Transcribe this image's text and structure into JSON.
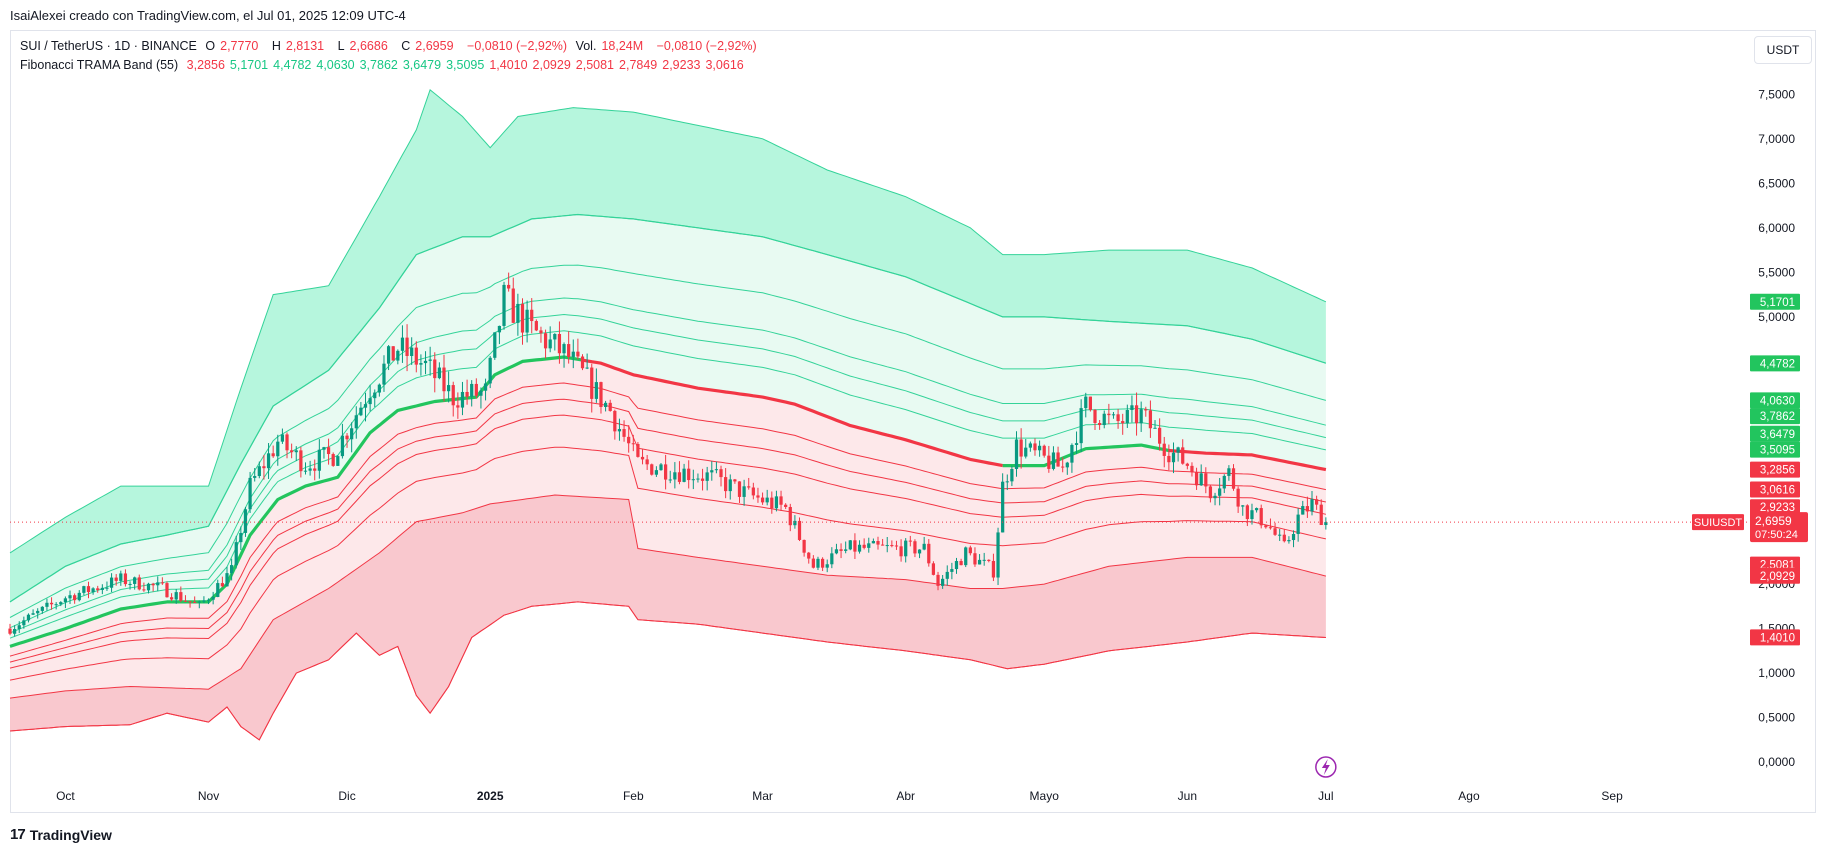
{
  "header": {
    "caption": "IsaiAlexei creado con TradingView.com, el Jul 01, 2025 12:09 UTC-4",
    "currency_button": "USDT"
  },
  "legend": {
    "symbol": "SUI / TetherUS · 1D · BINANCE",
    "open_label": "O",
    "open": "2,7770",
    "high_label": "H",
    "high": "2,8131",
    "low_label": "L",
    "low": "2,6686",
    "close_label": "C",
    "close": "2,6959",
    "change": "−0,0810 (−2,92%)",
    "volume_label": "Vol.",
    "volume": "18,24M",
    "volume_change": "−0,0810 (−2,92%)",
    "indicator_name": "Fibonacci TRAMA Band (55)",
    "indicator_values": [
      {
        "v": "3,2856",
        "c": "red"
      },
      {
        "v": "5,1701",
        "c": "green"
      },
      {
        "v": "4,4782",
        "c": "green"
      },
      {
        "v": "4,0630",
        "c": "green"
      },
      {
        "v": "3,7862",
        "c": "green"
      },
      {
        "v": "3,6479",
        "c": "green"
      },
      {
        "v": "3,5095",
        "c": "green"
      },
      {
        "v": "1,4010",
        "c": "red"
      },
      {
        "v": "2,0929",
        "c": "red"
      },
      {
        "v": "2,5081",
        "c": "red"
      },
      {
        "v": "2,7849",
        "c": "red"
      },
      {
        "v": "2,9233",
        "c": "red"
      },
      {
        "v": "3,0616",
        "c": "red"
      }
    ]
  },
  "footer": {
    "brand": "TradingView"
  },
  "colors": {
    "up": "#089981",
    "down": "#f23645",
    "green_line": "#22c55e",
    "red_line": "#f23645",
    "green_fill": "#b2f5db",
    "red_fill": "#f9c5cb",
    "grid_text": "#131722"
  },
  "chart_data": {
    "type": "candlestick",
    "symbol": "SUIUSDT",
    "y_axis": {
      "ticks": [
        {
          "v": 0.0,
          "label": "0,0000"
        },
        {
          "v": 0.5,
          "label": "0,5000"
        },
        {
          "v": 1.0,
          "label": "1,0000"
        },
        {
          "v": 1.5,
          "label": "1,5000"
        },
        {
          "v": 2.0,
          "label": "2,0000"
        },
        {
          "v": 5.0,
          "label": "5,0000"
        },
        {
          "v": 5.5,
          "label": "5,5000"
        },
        {
          "v": 6.0,
          "label": "6,0000"
        },
        {
          "v": 6.5,
          "label": "6,5000"
        },
        {
          "v": 7.0,
          "label": "7,0000"
        },
        {
          "v": 7.5,
          "label": "7,5000"
        }
      ],
      "ylim": [
        -0.2,
        7.75
      ]
    },
    "x_axis": {
      "start": "2024-09-19",
      "end": "2025-09-30",
      "ticks": [
        {
          "date": "2024-10-01",
          "label": "Oct",
          "bold": false
        },
        {
          "date": "2024-11-01",
          "label": "Nov",
          "bold": false
        },
        {
          "date": "2024-12-01",
          "label": "Dic",
          "bold": false
        },
        {
          "date": "2025-01-01",
          "label": "2025",
          "bold": true
        },
        {
          "date": "2025-02-01",
          "label": "Feb",
          "bold": false
        },
        {
          "date": "2025-03-01",
          "label": "Mar",
          "bold": false
        },
        {
          "date": "2025-04-01",
          "label": "Abr",
          "bold": false
        },
        {
          "date": "2025-05-01",
          "label": "Mayo",
          "bold": false
        },
        {
          "date": "2025-06-01",
          "label": "Jun",
          "bold": false
        },
        {
          "date": "2025-07-01",
          "label": "Jul",
          "bold": false
        },
        {
          "date": "2025-08-01",
          "label": "Ago",
          "bold": false
        },
        {
          "date": "2025-09-01",
          "label": "Sep",
          "bold": false
        }
      ]
    },
    "price_anchors": [
      [
        "2024-09-19",
        1.5
      ],
      [
        "2024-10-01",
        1.85
      ],
      [
        "2024-10-13",
        2.05
      ],
      [
        "2024-10-22",
        1.95
      ],
      [
        "2024-10-30",
        1.75
      ],
      [
        "2024-11-06",
        2.15
      ],
      [
        "2024-11-10",
        3.1
      ],
      [
        "2024-11-16",
        3.6
      ],
      [
        "2024-11-22",
        3.35
      ],
      [
        "2024-11-28",
        3.45
      ],
      [
        "2024-12-06",
        4.2
      ],
      [
        "2024-12-12",
        4.65
      ],
      [
        "2024-12-18",
        4.45
      ],
      [
        "2024-12-24",
        4.1
      ],
      [
        "2024-12-31",
        4.15
      ],
      [
        "2025-01-04",
        5.2
      ],
      [
        "2025-01-10",
        4.85
      ],
      [
        "2025-01-18",
        4.55
      ],
      [
        "2025-01-27",
        3.95
      ],
      [
        "2025-02-02",
        3.35
      ],
      [
        "2025-02-08",
        3.3
      ],
      [
        "2025-02-18",
        3.2
      ],
      [
        "2025-02-26",
        3.0
      ],
      [
        "2025-03-06",
        2.85
      ],
      [
        "2025-03-12",
        2.2
      ],
      [
        "2025-03-20",
        2.4
      ],
      [
        "2025-03-28",
        2.4
      ],
      [
        "2025-04-05",
        2.4
      ],
      [
        "2025-04-08",
        2.0
      ],
      [
        "2025-04-14",
        2.35
      ],
      [
        "2025-04-20",
        2.15
      ],
      [
        "2025-04-22",
        3.1
      ],
      [
        "2025-04-25",
        3.55
      ],
      [
        "2025-05-05",
        3.3
      ],
      [
        "2025-05-10",
        4.0
      ],
      [
        "2025-05-16",
        3.8
      ],
      [
        "2025-05-22",
        3.9
      ],
      [
        "2025-05-28",
        3.5
      ],
      [
        "2025-06-01",
        3.35
      ],
      [
        "2025-06-06",
        3.05
      ],
      [
        "2025-06-10",
        3.25
      ],
      [
        "2025-06-13",
        2.85
      ],
      [
        "2025-06-18",
        2.7
      ],
      [
        "2025-06-22",
        2.4
      ],
      [
        "2025-06-25",
        2.75
      ],
      [
        "2025-06-28",
        2.9
      ],
      [
        "2025-07-01",
        2.7
      ]
    ],
    "fill_bands": [
      {
        "name": "upper",
        "color": "#b2f5db",
        "top": [
          [
            "2024-09-19",
            2.35
          ],
          [
            "2024-10-01",
            2.75
          ],
          [
            "2024-10-13",
            3.1
          ],
          [
            "2024-10-23",
            3.1
          ],
          [
            "2024-11-01",
            3.1
          ],
          [
            "2024-11-08",
            4.2
          ],
          [
            "2024-11-15",
            5.25
          ],
          [
            "2024-11-27",
            5.35
          ],
          [
            "2024-12-08",
            6.35
          ],
          [
            "2024-12-16",
            7.1
          ],
          [
            "2024-12-19",
            7.55
          ],
          [
            "2024-12-26",
            7.25
          ],
          [
            "2025-01-01",
            6.9
          ],
          [
            "2025-01-07",
            7.25
          ],
          [
            "2025-01-13",
            7.3
          ],
          [
            "2025-01-19",
            7.35
          ],
          [
            "2025-02-01",
            7.3
          ],
          [
            "2025-02-15",
            7.15
          ],
          [
            "2025-03-01",
            7.0
          ],
          [
            "2025-03-15",
            6.65
          ],
          [
            "2025-04-01",
            6.35
          ],
          [
            "2025-04-15",
            6.0
          ],
          [
            "2025-04-22",
            5.7
          ],
          [
            "2025-05-01",
            5.7
          ],
          [
            "2025-05-15",
            5.75
          ],
          [
            "2025-06-01",
            5.75
          ],
          [
            "2025-06-15",
            5.55
          ],
          [
            "2025-07-01",
            5.17
          ]
        ],
        "bottom": [
          [
            "2024-09-19",
            1.8
          ],
          [
            "2024-10-01",
            2.2
          ],
          [
            "2024-10-13",
            2.45
          ],
          [
            "2024-10-23",
            2.55
          ],
          [
            "2024-11-01",
            2.65
          ],
          [
            "2024-11-08",
            3.35
          ],
          [
            "2024-11-15",
            4.0
          ],
          [
            "2024-11-27",
            4.4
          ],
          [
            "2024-12-08",
            5.1
          ],
          [
            "2024-12-16",
            5.7
          ],
          [
            "2024-12-26",
            5.9
          ],
          [
            "2025-01-01",
            5.9
          ],
          [
            "2025-01-10",
            6.1
          ],
          [
            "2025-01-20",
            6.15
          ],
          [
            "2025-02-01",
            6.1
          ],
          [
            "2025-02-15",
            6.0
          ],
          [
            "2025-03-01",
            5.9
          ],
          [
            "2025-03-15",
            5.7
          ],
          [
            "2025-04-01",
            5.45
          ],
          [
            "2025-04-15",
            5.15
          ],
          [
            "2025-04-22",
            5.0
          ],
          [
            "2025-05-01",
            5.0
          ],
          [
            "2025-05-15",
            4.95
          ],
          [
            "2025-06-01",
            4.9
          ],
          [
            "2025-06-15",
            4.75
          ],
          [
            "2025-07-01",
            4.48
          ]
        ]
      },
      {
        "name": "lower",
        "color": "#f9c5cb",
        "top": [
          [
            "2024-09-19",
            0.72
          ],
          [
            "2024-10-01",
            0.8
          ],
          [
            "2024-10-15",
            0.85
          ],
          [
            "2024-11-01",
            0.82
          ],
          [
            "2024-11-08",
            1.05
          ],
          [
            "2024-11-15",
            1.6
          ],
          [
            "2024-11-27",
            1.95
          ],
          [
            "2024-12-08",
            2.35
          ],
          [
            "2024-12-16",
            2.7
          ],
          [
            "2024-12-26",
            2.8
          ],
          [
            "2025-01-01",
            2.9
          ],
          [
            "2025-01-15",
            3.0
          ],
          [
            "2025-01-31",
            2.95
          ],
          [
            "2025-02-02",
            2.4
          ],
          [
            "2025-02-15",
            2.3
          ],
          [
            "2025-03-01",
            2.2
          ],
          [
            "2025-03-15",
            2.1
          ],
          [
            "2025-04-01",
            2.05
          ],
          [
            "2025-04-15",
            1.95
          ],
          [
            "2025-04-22",
            1.95
          ],
          [
            "2025-05-01",
            2.0
          ],
          [
            "2025-05-15",
            2.2
          ],
          [
            "2025-06-01",
            2.3
          ],
          [
            "2025-06-15",
            2.3
          ],
          [
            "2025-07-01",
            2.09
          ]
        ],
        "bottom": [
          [
            "2024-09-19",
            0.35
          ],
          [
            "2024-10-01",
            0.4
          ],
          [
            "2024-10-15",
            0.42
          ],
          [
            "2024-10-23",
            0.55
          ],
          [
            "2024-11-01",
            0.45
          ],
          [
            "2024-11-05",
            0.62
          ],
          [
            "2024-11-08",
            0.4
          ],
          [
            "2024-11-12",
            0.25
          ],
          [
            "2024-11-15",
            0.55
          ],
          [
            "2024-11-20",
            1.0
          ],
          [
            "2024-11-27",
            1.15
          ],
          [
            "2024-12-03",
            1.45
          ],
          [
            "2024-12-08",
            1.2
          ],
          [
            "2024-12-12",
            1.3
          ],
          [
            "2024-12-16",
            0.75
          ],
          [
            "2024-12-19",
            0.55
          ],
          [
            "2024-12-23",
            0.85
          ],
          [
            "2024-12-28",
            1.4
          ],
          [
            "2025-01-04",
            1.65
          ],
          [
            "2025-01-10",
            1.75
          ],
          [
            "2025-01-20",
            1.8
          ],
          [
            "2025-01-31",
            1.75
          ],
          [
            "2025-02-02",
            1.6
          ],
          [
            "2025-02-15",
            1.55
          ],
          [
            "2025-03-01",
            1.45
          ],
          [
            "2025-03-15",
            1.35
          ],
          [
            "2025-04-01",
            1.25
          ],
          [
            "2025-04-15",
            1.15
          ],
          [
            "2025-04-23",
            1.05
          ],
          [
            "2025-05-01",
            1.1
          ],
          [
            "2025-05-15",
            1.25
          ],
          [
            "2025-06-01",
            1.35
          ],
          [
            "2025-06-15",
            1.45
          ],
          [
            "2025-07-01",
            1.4
          ]
        ]
      }
    ],
    "band_lines": [
      {
        "name": "5,1701",
        "color": "#34d399",
        "width": 1.2,
        "fib": 1.0,
        "end": 5.1701
      },
      {
        "name": "4,4782",
        "color": "#34d399",
        "width": 1.0,
        "fib": 0.632,
        "end": 4.4782
      },
      {
        "name": "4,0630",
        "color": "#34d399",
        "width": 1.0,
        "fib": 0.411,
        "end": 4.063
      },
      {
        "name": "3,7862",
        "color": "#34d399",
        "width": 1.0,
        "fib": 0.264,
        "end": 3.7862
      },
      {
        "name": "3,6479",
        "color": "#34d399",
        "width": 1.0,
        "fib": 0.19,
        "end": 3.6479
      },
      {
        "name": "3,5095",
        "color": "#34d399",
        "width": 1.0,
        "fib": 0.117,
        "end": 3.5095
      },
      {
        "name": "3,0616",
        "color": "#f23645",
        "width": 1.0,
        "fib": -0.119,
        "end": 3.0616
      },
      {
        "name": "2,9233",
        "color": "#f23645",
        "width": 1.0,
        "fib": -0.193,
        "end": 2.9233
      },
      {
        "name": "2,7849",
        "color": "#f23645",
        "width": 1.0,
        "fib": -0.266,
        "end": 2.7849
      },
      {
        "name": "2,5081",
        "color": "#f23645",
        "width": 1.0,
        "fib": -0.413,
        "end": 2.5081
      },
      {
        "name": "2,0929",
        "color": "#f23645",
        "width": 1.0,
        "fib": -0.634,
        "end": 2.0929
      },
      {
        "name": "1,4010",
        "color": "#f23645",
        "width": 1.0,
        "fib": -1.0,
        "end": 1.401
      }
    ],
    "trama_line": {
      "name": "3,2856",
      "up_color": "#22c55e",
      "down_color": "#f23645",
      "points": [
        [
          "2024-09-19",
          1.3
        ],
        [
          "2024-10-01",
          1.5
        ],
        [
          "2024-10-13",
          1.72
        ],
        [
          "2024-10-23",
          1.8
        ],
        [
          "2024-11-01",
          1.8
        ],
        [
          "2024-11-05",
          2.0
        ],
        [
          "2024-11-10",
          2.55
        ],
        [
          "2024-11-16",
          2.95
        ],
        [
          "2024-11-22",
          3.1
        ],
        [
          "2024-11-29",
          3.2
        ],
        [
          "2024-12-06",
          3.7
        ],
        [
          "2024-12-12",
          3.95
        ],
        [
          "2024-12-20",
          4.05
        ],
        [
          "2024-12-29",
          4.1
        ],
        [
          "2025-01-02",
          4.35
        ],
        [
          "2025-01-08",
          4.5
        ],
        [
          "2025-01-17",
          4.55
        ],
        [
          "2025-01-25",
          4.48
        ],
        [
          "2025-02-01",
          4.35
        ],
        [
          "2025-02-15",
          4.2
        ],
        [
          "2025-03-01",
          4.1
        ],
        [
          "2025-03-08",
          4.02
        ],
        [
          "2025-03-20",
          3.78
        ],
        [
          "2025-04-01",
          3.62
        ],
        [
          "2025-04-15",
          3.4
        ],
        [
          "2025-04-22",
          3.33
        ],
        [
          "2025-05-01",
          3.33
        ],
        [
          "2025-05-10",
          3.52
        ],
        [
          "2025-05-22",
          3.56
        ],
        [
          "2025-05-28",
          3.5
        ],
        [
          "2025-06-05",
          3.47
        ],
        [
          "2025-06-15",
          3.45
        ],
        [
          "2025-07-01",
          3.2856
        ]
      ],
      "switch_to_red": "2025-01-21",
      "green_segment": [
        "2025-04-22",
        "2025-05-27"
      ]
    },
    "current_price": {
      "value": 2.6959,
      "label": "2,6959",
      "countdown": "07:50:24",
      "symbol": "SUIUSDT"
    },
    "axis_labels": [
      {
        "v": 5.1701,
        "label": "5,1701",
        "bg": "#22c55e"
      },
      {
        "v": 4.4782,
        "label": "4,4782",
        "bg": "#22c55e"
      },
      {
        "v": 4.063,
        "label": "4,0630",
        "bg": "#22c55e"
      },
      {
        "v": 3.8862,
        "label": "3,7862",
        "bg": "#22c55e"
      },
      {
        "v": 3.6879,
        "label": "3,6479",
        "bg": "#22c55e"
      },
      {
        "v": 3.5095,
        "label": "3,5095",
        "bg": "#22c55e"
      },
      {
        "v": 3.2856,
        "label": "3,2856",
        "bg": "#f23645"
      },
      {
        "v": 3.0616,
        "label": "3,0616",
        "bg": "#f23645"
      },
      {
        "v": 2.8633,
        "label": "2,9233",
        "bg": "#f23645"
      },
      {
        "v": 2.6649,
        "label": "2,7849",
        "bg": "#f23645"
      },
      {
        "v": 2.2181,
        "label": "2,5081",
        "bg": "#f23645"
      },
      {
        "v": 2.0929,
        "label": "2,0929",
        "bg": "#f23645"
      },
      {
        "v": 1.401,
        "label": "1,4010",
        "bg": "#f23645"
      }
    ]
  }
}
